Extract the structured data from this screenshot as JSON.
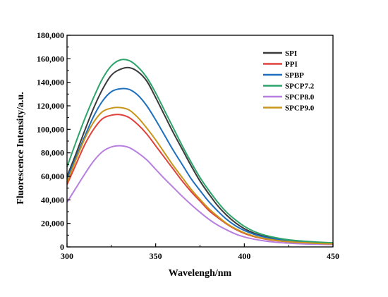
{
  "chart_data": {
    "type": "line",
    "title": "",
    "xlabel": "Wavelengh/nm",
    "ylabel": "Fluorescence Intensity/a.u.",
    "xlim": [
      300,
      450
    ],
    "ylim": [
      0,
      180000
    ],
    "x_ticks": [
      300,
      350,
      400,
      450
    ],
    "x_tick_labels": [
      "300",
      "350",
      "400",
      "450"
    ],
    "y_ticks": [
      0,
      20000,
      40000,
      60000,
      80000,
      100000,
      120000,
      140000,
      160000,
      180000
    ],
    "y_tick_labels": [
      "0",
      "20,000",
      "40,000",
      "60,000",
      "80,000",
      "100,000",
      "120,000",
      "140,000",
      "160,000",
      "180,000"
    ],
    "grid": false,
    "legend_position": "top-right",
    "x": [
      300,
      305,
      310,
      315,
      320,
      325,
      330,
      335,
      340,
      345,
      350,
      355,
      360,
      365,
      370,
      375,
      380,
      385,
      390,
      395,
      400,
      405,
      410,
      415,
      420,
      425,
      430,
      435,
      440,
      445,
      450
    ],
    "series": [
      {
        "name": "SPI",
        "color": "#3a3a3a",
        "values": [
          60000,
          79000,
          99000,
          118000,
          134000,
          146000,
          151000,
          152500,
          149000,
          141000,
          127000,
          112000,
          97000,
          83000,
          69000,
          56000,
          45000,
          35000,
          27000,
          20500,
          15500,
          12000,
          9500,
          7800,
          6500,
          5600,
          4800,
          4200,
          3700,
          3300,
          3000
        ]
      },
      {
        "name": "PPI",
        "color": "#e0423c",
        "values": [
          53000,
          70000,
          87000,
          100000,
          109000,
          112000,
          112500,
          110000,
          104000,
          96000,
          86000,
          76000,
          66000,
          56000,
          47000,
          39000,
          31000,
          25000,
          19500,
          15000,
          11500,
          9000,
          7200,
          5900,
          5000,
          4300,
          3800,
          3400,
          3000,
          2700,
          2500
        ]
      },
      {
        "name": "SPBP",
        "color": "#1f6fbf",
        "values": [
          58000,
          76000,
          94000,
          111000,
          124000,
          132000,
          134500,
          134000,
          129000,
          120000,
          108000,
          95000,
          82000,
          70000,
          58000,
          48000,
          38500,
          30500,
          23500,
          18000,
          14000,
          11000,
          8800,
          7200,
          6000,
          5100,
          4400,
          3900,
          3500,
          3200,
          2900
        ]
      },
      {
        "name": "SPCP7.2",
        "color": "#2ca46a",
        "values": [
          68000,
          89000,
          109000,
          127000,
          143000,
          154000,
          159000,
          158500,
          153000,
          144000,
          131000,
          116000,
          101000,
          86000,
          72000,
          59000,
          48000,
          38000,
          29500,
          23000,
          17500,
          13500,
          10700,
          8700,
          7200,
          6100,
          5300,
          4700,
          4200,
          3800,
          3500
        ]
      },
      {
        "name": "SPCP8.0",
        "color": "#b77fe0",
        "values": [
          38000,
          50000,
          62000,
          73000,
          81000,
          85000,
          86000,
          84500,
          80000,
          74000,
          66000,
          58000,
          50500,
          43000,
          36000,
          29500,
          23500,
          18500,
          14500,
          11000,
          8500,
          6700,
          5400,
          4400,
          3700,
          3200,
          2800,
          2500,
          2300,
          2100,
          2000
        ]
      },
      {
        "name": "SPCP9.0",
        "color": "#c8961a",
        "values": [
          55000,
          74000,
          92000,
          106000,
          115000,
          118000,
          118500,
          116500,
          110000,
          101000,
          91000,
          80000,
          69000,
          59000,
          49000,
          40500,
          32500,
          26000,
          20000,
          15500,
          12000,
          9400,
          7500,
          6200,
          5200,
          4500,
          3900,
          3500,
          3100,
          2800,
          2600
        ]
      }
    ]
  }
}
